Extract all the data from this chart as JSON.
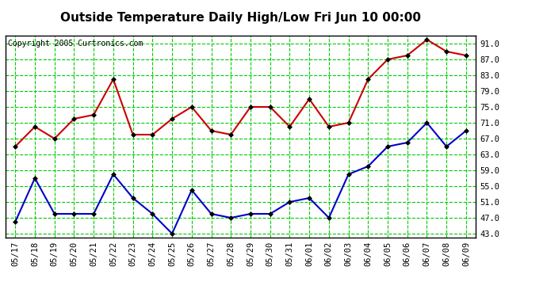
{
  "title": "Outside Temperature Daily High/Low Fri Jun 10 00:00",
  "copyright": "Copyright 2005 Curtronics.com",
  "x_labels": [
    "05/17",
    "05/18",
    "05/19",
    "05/20",
    "05/21",
    "05/22",
    "05/23",
    "05/24",
    "05/25",
    "05/26",
    "05/27",
    "05/28",
    "05/29",
    "05/30",
    "05/31",
    "06/01",
    "06/02",
    "06/03",
    "06/04",
    "06/05",
    "06/06",
    "06/07",
    "06/08",
    "06/09"
  ],
  "high_values": [
    65,
    70,
    67,
    72,
    73,
    82,
    68,
    68,
    72,
    75,
    69,
    68,
    75,
    75,
    70,
    77,
    70,
    71,
    82,
    87,
    88,
    92,
    89,
    88
  ],
  "low_values": [
    46,
    57,
    48,
    48,
    48,
    58,
    52,
    48,
    43,
    54,
    48,
    47,
    48,
    48,
    51,
    52,
    47,
    58,
    60,
    65,
    66,
    71,
    65,
    69
  ],
  "high_color": "#cc0000",
  "low_color": "#0000cc",
  "background_color": "#ffffff",
  "plot_bg_color": "#ffffff",
  "grid_color": "#00cc00",
  "y_ticks": [
    43.0,
    47.0,
    51.0,
    55.0,
    59.0,
    63.0,
    67.0,
    71.0,
    75.0,
    79.0,
    83.0,
    87.0,
    91.0
  ],
  "ylim": [
    42.0,
    93.0
  ],
  "title_fontsize": 11,
  "tick_fontsize": 7.5,
  "copyright_fontsize": 7,
  "marker": "D",
  "marker_size": 3,
  "linewidth": 1.5
}
